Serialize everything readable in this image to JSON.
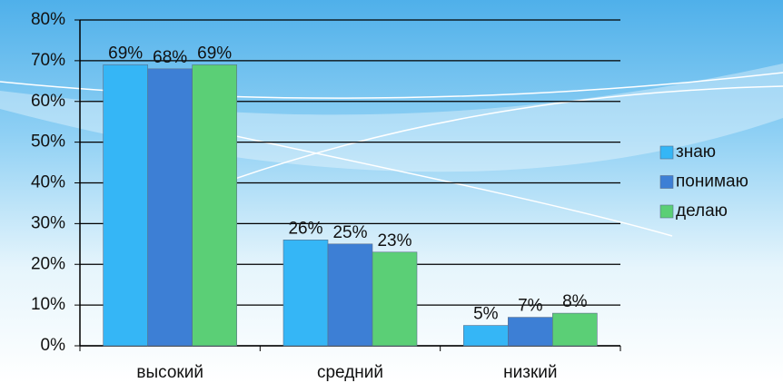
{
  "chart_data": {
    "type": "bar",
    "categories": [
      "высокий",
      "средний",
      "низкий"
    ],
    "series": [
      {
        "name": "знаю",
        "color": "#35b6f6",
        "values": [
          69,
          26,
          5
        ],
        "value_labels": [
          "69%",
          "26%",
          "5%"
        ]
      },
      {
        "name": "понимаю",
        "color": "#3d7fd5",
        "values": [
          68,
          25,
          7
        ],
        "value_labels": [
          "68%",
          "25%",
          "7%"
        ]
      },
      {
        "name": "делаю",
        "color": "#5bcf76",
        "values": [
          69,
          23,
          8
        ],
        "value_labels": [
          "69%",
          "23%",
          "8%"
        ]
      }
    ],
    "ylim": [
      0,
      80
    ],
    "yticks": [
      {
        "value": 0,
        "label": "0%"
      },
      {
        "value": 10,
        "label": "10%"
      },
      {
        "value": 20,
        "label": "20%"
      },
      {
        "value": 30,
        "label": "30%"
      },
      {
        "value": 40,
        "label": "40%"
      },
      {
        "value": 50,
        "label": "50%"
      },
      {
        "value": 60,
        "label": "60%"
      },
      {
        "value": 70,
        "label": "70%"
      },
      {
        "value": 80,
        "label": "80%"
      }
    ],
    "grid": true,
    "legend": "right"
  }
}
